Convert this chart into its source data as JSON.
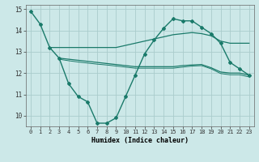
{
  "xlabel": "Humidex (Indice chaleur)",
  "background_color": "#cce8e8",
  "grid_color": "#aacccc",
  "line_color": "#1a7a6a",
  "xlim": [
    -0.5,
    23.5
  ],
  "ylim": [
    9.5,
    15.2
  ],
  "xticks": [
    0,
    1,
    2,
    3,
    4,
    5,
    6,
    7,
    8,
    9,
    10,
    11,
    12,
    13,
    14,
    15,
    16,
    17,
    18,
    19,
    20,
    21,
    22,
    23
  ],
  "yticks": [
    10,
    11,
    12,
    13,
    14,
    15
  ],
  "series": [
    {
      "x": [
        0,
        1,
        2,
        3,
        4,
        5,
        6,
        7,
        8,
        9,
        10,
        11,
        12,
        13,
        14,
        15,
        16,
        17,
        18,
        19,
        20,
        21,
        22,
        23
      ],
      "y": [
        14.9,
        14.3,
        13.2,
        12.7,
        11.5,
        10.9,
        10.65,
        9.65,
        9.65,
        9.9,
        10.9,
        11.9,
        12.9,
        13.55,
        14.1,
        14.55,
        14.45,
        14.45,
        14.15,
        13.85,
        13.4,
        12.5,
        12.2,
        11.9
      ],
      "marker": "D",
      "markersize": 2.0,
      "linewidth": 1.0
    },
    {
      "x": [
        2,
        3,
        4,
        5,
        6,
        7,
        8,
        9,
        10,
        11,
        12,
        13,
        14,
        15,
        16,
        17,
        18,
        19,
        20,
        21,
        22,
        23
      ],
      "y": [
        13.2,
        13.2,
        13.2,
        13.2,
        13.2,
        13.2,
        13.2,
        13.2,
        13.3,
        13.4,
        13.5,
        13.6,
        13.7,
        13.8,
        13.85,
        13.9,
        13.85,
        13.75,
        13.5,
        13.4,
        13.4,
        13.4
      ],
      "marker": null,
      "markersize": 0,
      "linewidth": 0.9
    },
    {
      "x": [
        3,
        4,
        5,
        6,
        7,
        8,
        9,
        10,
        11,
        12,
        13,
        14,
        15,
        16,
        17,
        18,
        19,
        20,
        21,
        22,
        23
      ],
      "y": [
        12.7,
        12.65,
        12.6,
        12.55,
        12.5,
        12.45,
        12.4,
        12.35,
        12.3,
        12.3,
        12.3,
        12.3,
        12.3,
        12.35,
        12.38,
        12.4,
        12.25,
        12.05,
        12.0,
        12.0,
        11.9
      ],
      "marker": null,
      "markersize": 0,
      "linewidth": 0.9
    },
    {
      "x": [
        3,
        4,
        5,
        6,
        7,
        8,
        9,
        10,
        11,
        12,
        13,
        14,
        15,
        16,
        17,
        18,
        19,
        20,
        21,
        22,
        23
      ],
      "y": [
        12.65,
        12.58,
        12.52,
        12.47,
        12.42,
        12.38,
        12.33,
        12.28,
        12.23,
        12.23,
        12.23,
        12.23,
        12.23,
        12.28,
        12.33,
        12.35,
        12.2,
        11.98,
        11.92,
        11.92,
        11.82
      ],
      "marker": null,
      "markersize": 0,
      "linewidth": 0.7
    }
  ]
}
